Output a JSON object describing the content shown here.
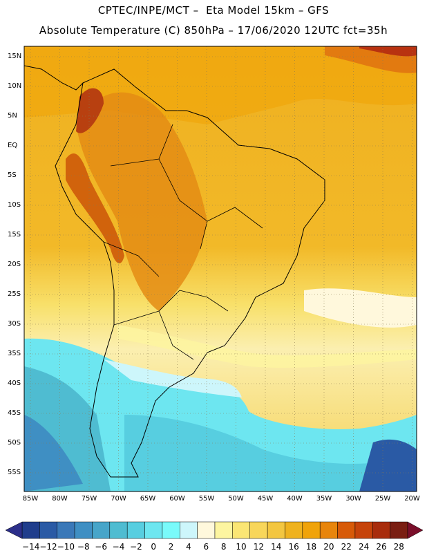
{
  "header": {
    "line1": "CPTEC/INPE/MCT –  Eta Model 15km – GFS",
    "line2": "Absolute Temperature (C) 850hPa – 17/06/2020 12UTC fct=35h"
  },
  "map": {
    "lat_labels": [
      "15N",
      "10N",
      "5N",
      "EQ",
      "5S",
      "10S",
      "15S",
      "20S",
      "25S",
      "30S",
      "35S",
      "40S",
      "45S",
      "50S",
      "55S"
    ],
    "lon_labels": [
      "85W",
      "80W",
      "75W",
      "70W",
      "65W",
      "60W",
      "55W",
      "50W",
      "45W",
      "40W",
      "35W",
      "30W",
      "25W",
      "20W"
    ],
    "grid": "dotted"
  },
  "colorbar": {
    "labels": [
      "-14",
      "-12",
      "-10",
      "-8",
      "-6",
      "-4",
      "-2",
      "0",
      "2",
      "4",
      "6",
      "8",
      "10",
      "12",
      "14",
      "16",
      "18",
      "20",
      "22",
      "24",
      "26",
      "28"
    ],
    "colors": [
      "#1f3d8c",
      "#2a5aa5",
      "#3a78b8",
      "#3f8fc3",
      "#47a5c9",
      "#4fbcd1",
      "#57cee0",
      "#6de6f0",
      "#79fafa",
      "#cdf6fb",
      "#fff8dc",
      "#fdf5a0",
      "#fbe674",
      "#f8d65a",
      "#f3c640",
      "#efb21e",
      "#f0a30a",
      "#e8850c",
      "#d75a08",
      "#c6430a",
      "#a82c0c",
      "#7a1e12"
    ]
  }
}
